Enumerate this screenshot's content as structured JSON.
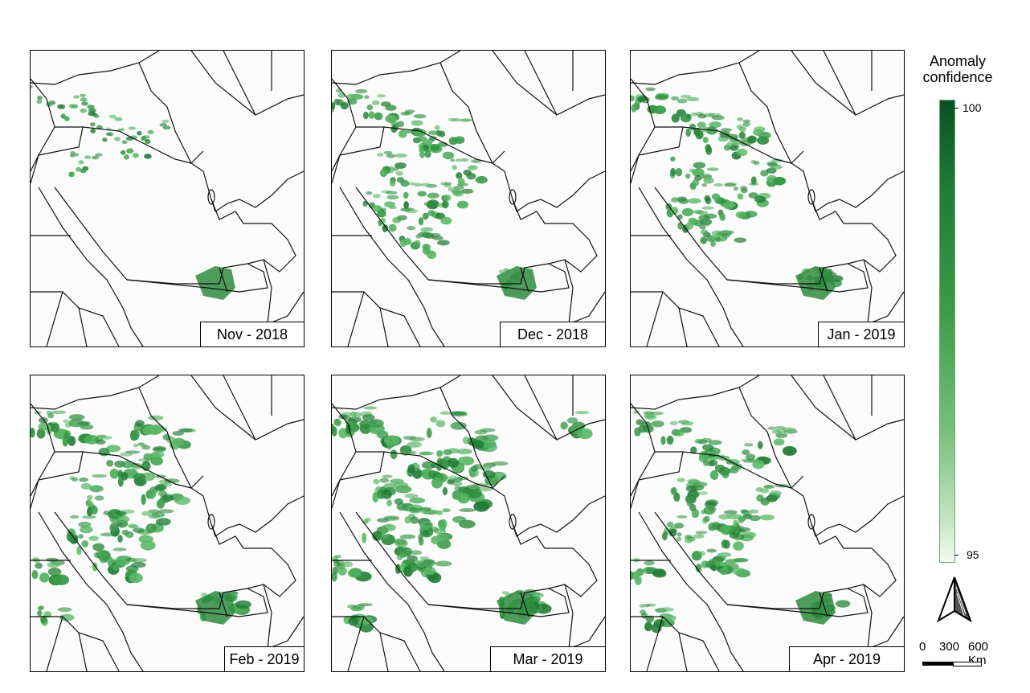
{
  "panels": [
    {
      "label": "Nov - 2018",
      "intensity": 0.22
    },
    {
      "label": "Dec - 2018",
      "intensity": 0.55
    },
    {
      "label": "Jan - 2019",
      "intensity": 0.6
    },
    {
      "label": "Feb - 2019",
      "intensity": 0.8
    },
    {
      "label": "Mar - 2019",
      "intensity": 0.85
    },
    {
      "label": "Apr - 2019",
      "intensity": 0.7
    }
  ],
  "legend": {
    "title_line1": "Anomaly",
    "title_line2": "confidence",
    "max_label": "100",
    "min_label": "95",
    "color_max": "#0b4f22",
    "color_min": "#f3faf2"
  },
  "scale_bar": {
    "label_0": "0",
    "label_300": "300",
    "label_600": "600 Km"
  },
  "north_arrow": {
    "icon": "north-arrow-icon"
  }
}
